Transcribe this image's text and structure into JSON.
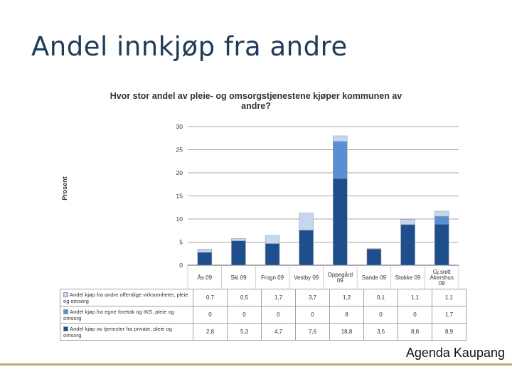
{
  "slide": {
    "title": "Andel innkjøp fra andre",
    "brand": "Agenda Kaupang"
  },
  "chart_data": {
    "type": "bar",
    "stacked": true,
    "title": "Hvor stor andel av pleie- og omsorgstjenestene kjøper kommunen av andre?",
    "ylabel": "Prosent",
    "ylim": [
      0,
      30
    ],
    "yticks": [
      0,
      5,
      10,
      15,
      20,
      25,
      30
    ],
    "grid": true,
    "legend": "table-below",
    "categories": [
      "Ås 09",
      "Ski 09",
      "Frogn 09",
      "Vestby 09",
      "Oppegård 09",
      "Sande 09",
      "Stokke 09",
      "Gj.snitt Akershus 09"
    ],
    "category_lines": [
      [
        "Ås 09"
      ],
      [
        "Ski 09"
      ],
      [
        "Frogn 09"
      ],
      [
        "Vestby 09"
      ],
      [
        "Oppegård",
        "09"
      ],
      [
        "Sande 09"
      ],
      [
        "Stokke 09"
      ],
      [
        "Gj.snitt",
        "Akershus",
        "09"
      ]
    ],
    "series": [
      {
        "name": "Andel kjøp av tjenester fra private, pleie og omsorg",
        "color": "#1f4e8c",
        "values": [
          2.8,
          5.3,
          4.7,
          7.6,
          18.8,
          3.5,
          8.8,
          8.9
        ]
      },
      {
        "name": "Andel kjøp fra egne foretak og IKS, pleie og omsorg",
        "color": "#5b8fd4",
        "values": [
          0,
          0,
          0,
          0,
          8,
          0,
          0,
          1.7
        ]
      },
      {
        "name": "Andel kjøp fra andre offentlige virksomheter, pleie og omsorg",
        "color": "#c6d6ee",
        "values": [
          0.7,
          0.5,
          1.7,
          3.7,
          1.2,
          0.1,
          1.1,
          1.1
        ]
      }
    ],
    "table": {
      "rows": [
        {
          "label": "Andel kjøp fra andre offentlige virksomheter, pleie og omsorg",
          "color": "#c6d6ee",
          "values": [
            "0,7",
            "0,5",
            "1,7",
            "3,7",
            "1,2",
            "0,1",
            "1,1",
            "1,1"
          ]
        },
        {
          "label": "Andel kjøp fra egne foretak og IKS, pleie og omsorg",
          "color": "#5b8fd4",
          "values": [
            "0",
            "0",
            "0",
            "0",
            "8",
            "0",
            "0",
            "1,7"
          ]
        },
        {
          "label": "Andel kjøp av tjenester fra private, pleie og omsorg",
          "color": "#1f4e8c",
          "values": [
            "2,8",
            "5,3",
            "4,7",
            "7,6",
            "18,8",
            "3,5",
            "8,8",
            "8,9"
          ]
        }
      ]
    }
  }
}
